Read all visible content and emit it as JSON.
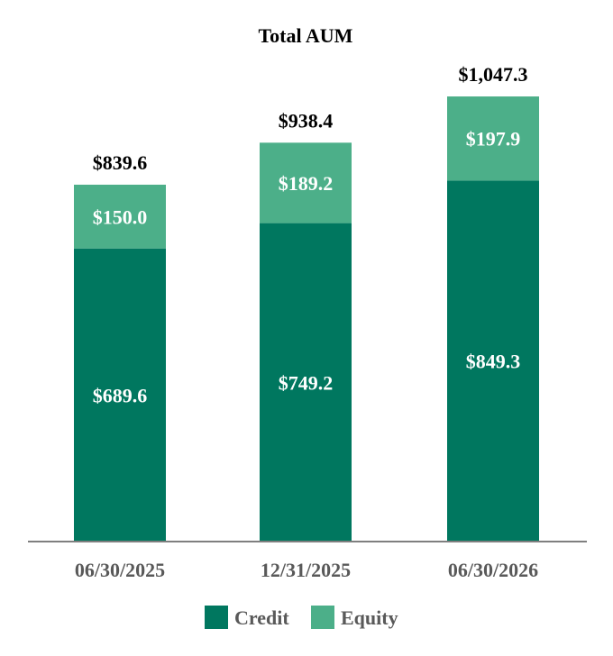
{
  "chart_data": {
    "type": "bar",
    "stacked": true,
    "title": "Total AUM",
    "xlabel": "",
    "ylabel": "",
    "categories": [
      "06/30/2025",
      "12/31/2025",
      "06/30/2026"
    ],
    "series": [
      {
        "name": "Credit",
        "values": [
          689.6,
          749.2,
          849.3
        ],
        "labels": [
          "$689.6",
          "$749.2",
          "$849.3"
        ],
        "color": "#00775f"
      },
      {
        "name": "Equity",
        "values": [
          150.0,
          189.2,
          197.9
        ],
        "labels": [
          "$150.0",
          "$189.2",
          "$197.9"
        ],
        "color": "#4caf89"
      }
    ],
    "totals": [
      839.6,
      938.4,
      1047.3
    ],
    "total_labels": [
      "$839.6",
      "$938.4",
      "$1,047.3"
    ],
    "ylim": [
      0,
      1100
    ],
    "grid": false,
    "legend_position": "bottom"
  }
}
